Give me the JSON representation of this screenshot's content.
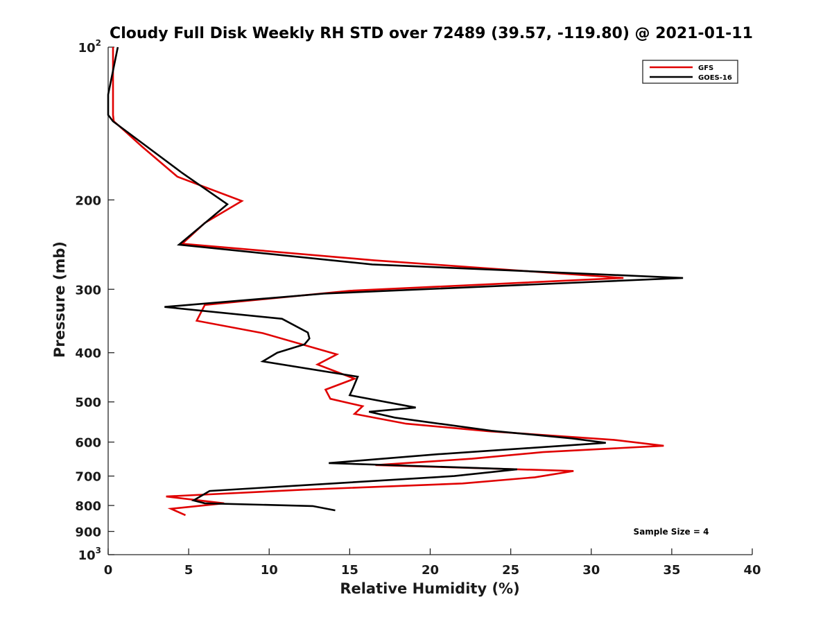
{
  "chart_data": {
    "type": "line",
    "title": "Cloudy Full Disk Weekly RH STD over 72489 (39.57, -119.80) @ 2021-01-11",
    "xlabel": "Relative Humidity (%)",
    "ylabel": "Pressure (mb)",
    "xlim": [
      0,
      40
    ],
    "ylim": [
      100,
      1000
    ],
    "y_scale": "log",
    "y_reversed": true,
    "grid": false,
    "legend_position": "top-right",
    "x_ticks": [
      "0",
      "5",
      "10",
      "15",
      "20",
      "25",
      "30",
      "35",
      "40"
    ],
    "y_ticks": [
      {
        "value": 100,
        "base": "10",
        "exp": "2"
      },
      {
        "value": 200,
        "label": "200"
      },
      {
        "value": 300,
        "label": "300"
      },
      {
        "value": 400,
        "label": "400"
      },
      {
        "value": 500,
        "label": "500"
      },
      {
        "value": 600,
        "label": "600"
      },
      {
        "value": 700,
        "label": "700"
      },
      {
        "value": 800,
        "label": "800"
      },
      {
        "value": 900,
        "label": "900"
      },
      {
        "value": 1000,
        "base": "10",
        "exp": "3"
      }
    ],
    "annotation": "Sample Size = 4",
    "series": [
      {
        "name": "GFS",
        "color": "#e00000",
        "points": [
          [
            0.3,
            100
          ],
          [
            0.3,
            115
          ],
          [
            0.3,
            125
          ],
          [
            0.3,
            136
          ],
          [
            0.35,
            140
          ],
          [
            0.9,
            145
          ],
          [
            2.1,
            157
          ],
          [
            4.3,
            180
          ],
          [
            8.3,
            201
          ],
          [
            6.0,
            222
          ],
          [
            4.6,
            244
          ],
          [
            16.5,
            263
          ],
          [
            32.0,
            285
          ],
          [
            15.0,
            302
          ],
          [
            6.0,
            322
          ],
          [
            5.5,
            346
          ],
          [
            9.6,
            366
          ],
          [
            14.2,
            403
          ],
          [
            13.0,
            422
          ],
          [
            15.3,
            450
          ],
          [
            13.5,
            473
          ],
          [
            13.8,
            493
          ],
          [
            15.8,
            510
          ],
          [
            15.3,
            528
          ],
          [
            18.5,
            552
          ],
          [
            23.6,
            571
          ],
          [
            31.4,
            594
          ],
          [
            34.5,
            610
          ],
          [
            27.0,
            628
          ],
          [
            22.6,
            647
          ],
          [
            16.6,
            666
          ],
          [
            28.9,
            684
          ],
          [
            26.5,
            704
          ],
          [
            22.0,
            724
          ],
          [
            12.0,
            745
          ],
          [
            3.6,
            768
          ],
          [
            7.2,
            792
          ],
          [
            3.9,
            812
          ],
          [
            4.8,
            836
          ]
        ]
      },
      {
        "name": "GOES-16",
        "color": "#000000",
        "points": [
          [
            0.6,
            100
          ],
          [
            0.0,
            124
          ],
          [
            0.0,
            136
          ],
          [
            0.3,
            140
          ],
          [
            4.6,
            177
          ],
          [
            7.4,
            204
          ],
          [
            4.4,
            245
          ],
          [
            16.4,
            268
          ],
          [
            35.7,
            285
          ],
          [
            13.4,
            306
          ],
          [
            3.5,
            325
          ],
          [
            10.8,
            343
          ],
          [
            12.4,
            365
          ],
          [
            12.5,
            375
          ],
          [
            12.2,
            385
          ],
          [
            10.5,
            400
          ],
          [
            9.6,
            416
          ],
          [
            15.5,
            446
          ],
          [
            15.2,
            470
          ],
          [
            15.0,
            485
          ],
          [
            19.1,
            513
          ],
          [
            16.2,
            523
          ],
          [
            17.8,
            537
          ],
          [
            23.8,
            570
          ],
          [
            28.8,
            590
          ],
          [
            30.9,
            602
          ],
          [
            20.5,
            634
          ],
          [
            13.7,
            660
          ],
          [
            25.4,
            679
          ],
          [
            21.5,
            700
          ],
          [
            6.3,
            749
          ],
          [
            5.3,
            782
          ],
          [
            6.0,
            792
          ],
          [
            12.7,
            802
          ],
          [
            14.1,
            818
          ]
        ]
      }
    ]
  }
}
